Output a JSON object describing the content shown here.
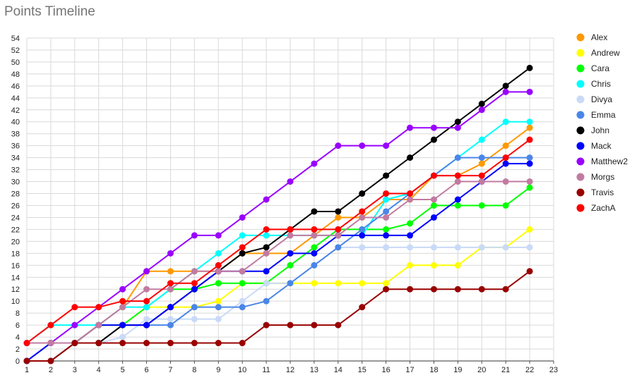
{
  "chart_data": {
    "type": "line",
    "title": "Points Timeline",
    "xlabel": "",
    "ylabel": "",
    "xlim": [
      1,
      23
    ],
    "ylim": [
      0,
      54
    ],
    "x_ticks": [
      1,
      2,
      3,
      4,
      5,
      6,
      7,
      8,
      9,
      10,
      11,
      12,
      13,
      14,
      15,
      16,
      17,
      18,
      19,
      20,
      21,
      22,
      23
    ],
    "y_ticks": [
      0,
      2,
      4,
      6,
      8,
      10,
      12,
      14,
      16,
      18,
      20,
      22,
      24,
      26,
      28,
      30,
      32,
      34,
      36,
      38,
      40,
      42,
      44,
      46,
      48,
      50,
      52,
      54
    ],
    "grid": true,
    "legend_position": "right",
    "x": [
      1,
      2,
      3,
      4,
      5,
      6,
      7,
      8,
      9,
      10,
      11,
      12,
      13,
      14,
      15,
      16,
      17,
      18,
      19,
      20,
      21,
      22
    ],
    "series": [
      {
        "name": "Alex",
        "color": "#ff9900",
        "values": [
          3,
          3,
          3,
          6,
          9,
          15,
          15,
          15,
          15,
          18,
          18,
          18,
          21,
          24,
          24,
          27,
          27,
          31,
          31,
          33,
          36,
          39
        ]
      },
      {
        "name": "Andrew",
        "color": "#ffff00",
        "values": [
          0,
          3,
          3,
          6,
          6,
          9,
          9,
          9,
          10,
          13,
          13,
          13,
          13,
          13,
          13,
          13,
          16,
          16,
          16,
          19,
          19,
          22
        ]
      },
      {
        "name": "Cara",
        "color": "#00ff00",
        "values": [
          3,
          3,
          3,
          6,
          6,
          9,
          12,
          12,
          13,
          13,
          13,
          16,
          19,
          22,
          22,
          22,
          23,
          26,
          26,
          26,
          26,
          29
        ]
      },
      {
        "name": "Chris",
        "color": "#00ffff",
        "values": [
          3,
          6,
          6,
          6,
          9,
          9,
          12,
          15,
          18,
          21,
          21,
          21,
          21,
          21,
          21,
          27,
          28,
          31,
          34,
          37,
          40,
          40
        ]
      },
      {
        "name": "Divya",
        "color": "#c9daf8",
        "values": [
          0,
          3,
          3,
          3,
          4,
          7,
          7,
          7,
          7,
          10,
          13,
          13,
          16,
          19,
          19,
          19,
          19,
          19,
          19,
          19,
          19,
          19
        ]
      },
      {
        "name": "Emma",
        "color": "#4a86e8",
        "values": [
          0,
          3,
          3,
          3,
          6,
          6,
          6,
          9,
          9,
          9,
          10,
          13,
          16,
          19,
          22,
          25,
          28,
          31,
          34,
          34,
          34,
          34
        ]
      },
      {
        "name": "John",
        "color": "#000000",
        "values": [
          0,
          0,
          3,
          3,
          6,
          6,
          9,
          12,
          15,
          18,
          19,
          22,
          25,
          25,
          28,
          31,
          34,
          37,
          40,
          43,
          46,
          49
        ]
      },
      {
        "name": "Mack",
        "color": "#0000ff",
        "values": [
          0,
          3,
          3,
          6,
          6,
          6,
          9,
          12,
          15,
          15,
          15,
          18,
          18,
          21,
          21,
          21,
          21,
          24,
          27,
          30,
          33,
          33
        ]
      },
      {
        "name": "Matthew2",
        "color": "#9900ff",
        "values": [
          3,
          3,
          6,
          9,
          12,
          15,
          18,
          21,
          21,
          24,
          27,
          30,
          33,
          36,
          36,
          36,
          39,
          39,
          39,
          42,
          45,
          45
        ]
      },
      {
        "name": "Morgs",
        "color": "#c27ba0",
        "values": [
          3,
          3,
          3,
          6,
          9,
          12,
          12,
          15,
          15,
          15,
          18,
          21,
          21,
          21,
          24,
          24,
          27,
          27,
          30,
          30,
          30,
          30
        ]
      },
      {
        "name": "Travis",
        "color": "#990000",
        "values": [
          0,
          0,
          3,
          3,
          3,
          3,
          3,
          3,
          3,
          3,
          6,
          6,
          6,
          6,
          9,
          12,
          12,
          12,
          12,
          12,
          12,
          15
        ]
      },
      {
        "name": "ZachA",
        "color": "#ff0000",
        "values": [
          3,
          6,
          9,
          9,
          10,
          10,
          13,
          13,
          16,
          19,
          22,
          22,
          22,
          22,
          25,
          28,
          28,
          31,
          31,
          31,
          34,
          37
        ]
      }
    ]
  }
}
